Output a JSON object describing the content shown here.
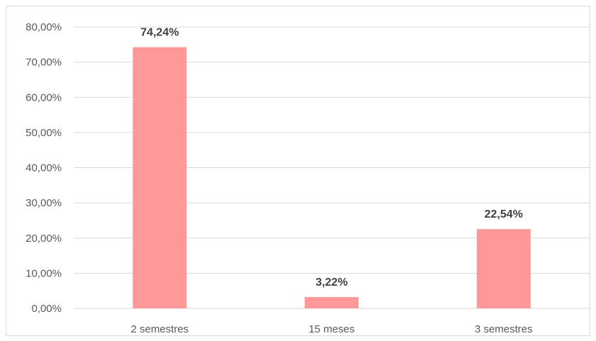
{
  "chart_data": {
    "type": "bar",
    "categories": [
      "2 semestres",
      "15 meses",
      "3 semestres"
    ],
    "values": [
      74.24,
      3.22,
      22.54
    ],
    "data_labels": [
      "74,24%",
      "3,22%",
      "22,54%"
    ],
    "y_ticks": [
      "0,00%",
      "10,00%",
      "20,00%",
      "30,00%",
      "40,00%",
      "50,00%",
      "60,00%",
      "70,00%",
      "80,00%"
    ],
    "ylim": [
      0,
      80
    ],
    "grid": true,
    "legend": "none",
    "bar_color": "#ff9999",
    "grid_color": "#d9d9d9"
  }
}
